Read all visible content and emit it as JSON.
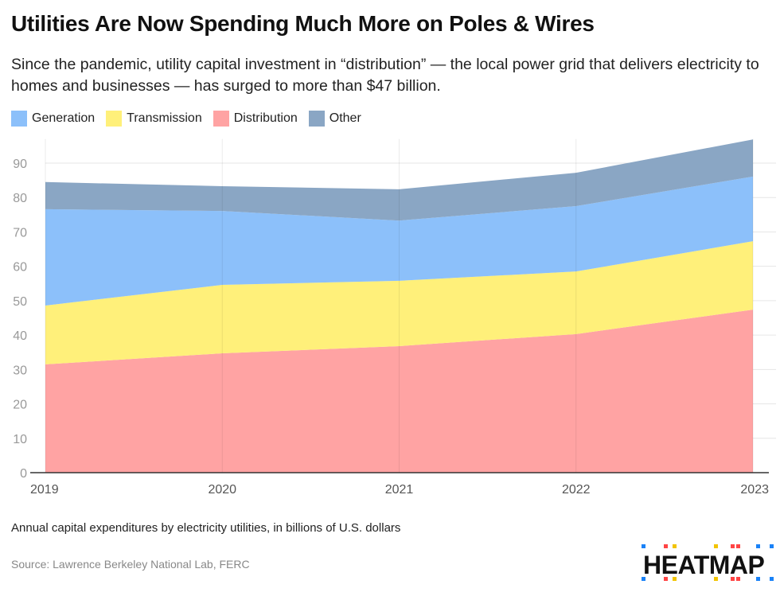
{
  "title": "Utilities Are Now Spending Much More on Poles & Wires",
  "subtitle": "Since the pandemic, utility capital investment in “distribution” — the local power grid that delivers electricity to homes and businesses — has surged to more than $47 billion.",
  "note": "Annual capital expenditures by electricity utilities, in billions of U.S. dollars",
  "source": "Source: Lawrence Berkeley National Lab, FERC",
  "logo": "HEATMAP",
  "chart_data": {
    "type": "area",
    "stacked": true,
    "x": [
      "2019",
      "2020",
      "2021",
      "2022",
      "2023"
    ],
    "ylim": [
      0,
      97
    ],
    "yticks": [
      0,
      10,
      20,
      30,
      40,
      50,
      60,
      70,
      80,
      90
    ],
    "grid": true,
    "legend_placement": "top-left",
    "series": [
      {
        "name": "Distribution",
        "color": "#ffa3a3",
        "values": [
          31.5,
          34.7,
          36.8,
          40.3,
          47.4
        ]
      },
      {
        "name": "Transmission",
        "color": "#fff07a",
        "values": [
          17.1,
          19.9,
          19.0,
          18.2,
          19.9
        ]
      },
      {
        "name": "Generation",
        "color": "#8cc0fa",
        "values": [
          28.0,
          21.5,
          17.5,
          19.0,
          18.8
        ]
      },
      {
        "name": "Other",
        "color": "#8aa6c4",
        "values": [
          7.9,
          7.2,
          9.1,
          9.7,
          10.8
        ]
      }
    ],
    "legend_order": [
      "Generation",
      "Transmission",
      "Distribution",
      "Other"
    ]
  }
}
